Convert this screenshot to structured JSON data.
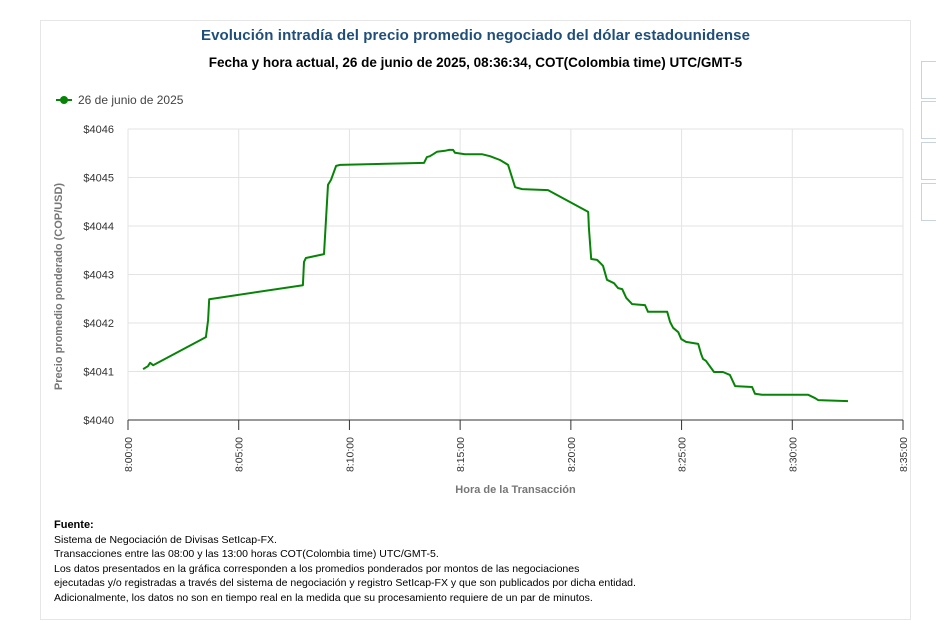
{
  "chart_data": {
    "type": "line",
    "title": "Evolución intradía del precio promedio negociado del dólar estadounidense",
    "subtitle": "Fecha y hora actual, 26 de junio de 2025, 08:36:34, COT(Colombia time) UTC/GMT-5",
    "xlabel": "Hora de la Transacción",
    "ylabel": "Precio promedio ponderado (COP/USD)",
    "xlim": [
      "8:00:00",
      "8:35:00"
    ],
    "ylim": [
      4040,
      4046
    ],
    "x_ticks": [
      "8:00:00",
      "8:05:00",
      "8:10:00",
      "8:15:00",
      "8:20:00",
      "8:25:00",
      "8:30:00",
      "8:35:00"
    ],
    "y_ticks": [
      "$4040",
      "$4041",
      "$4042",
      "$4043",
      "$4044",
      "$4045",
      "$4046"
    ],
    "grid": true,
    "legend_position": "top-left",
    "series": [
      {
        "name": "26 de junio de 2025",
        "color": "#078407",
        "x": [
          "8:00:41",
          "8:00:54",
          "8:01:00",
          "8:01:08",
          "8:03:31",
          "8:03:37",
          "8:03:40",
          "8:07:54",
          "8:07:57",
          "8:08:02",
          "8:08:51",
          "8:09:02",
          "8:09:10",
          "8:09:24",
          "8:09:35",
          "8:13:22",
          "8:13:30",
          "8:13:38",
          "8:13:47",
          "8:13:57",
          "8:14:19",
          "8:14:30",
          "8:14:41",
          "8:14:46",
          "8:15:13",
          "8:15:59",
          "8:16:21",
          "8:16:48",
          "8:17:10",
          "8:17:29",
          "8:17:48",
          "8:18:58",
          "8:20:47",
          "8:20:49",
          "8:20:55",
          "8:21:11",
          "8:21:22",
          "8:21:27",
          "8:21:38",
          "8:21:57",
          "8:22:08",
          "8:22:19",
          "8:22:30",
          "8:22:46",
          "8:23:21",
          "8:23:29",
          "8:24:21",
          "8:24:29",
          "8:24:37",
          "8:24:51",
          "8:24:59",
          "8:25:12",
          "8:25:45",
          "8:25:53",
          "8:25:58",
          "8:26:06",
          "8:26:28",
          "8:26:52",
          "8:27:11",
          "8:27:25",
          "8:28:11",
          "8:28:19",
          "8:28:38",
          "8:30:43",
          "8:31:02",
          "8:31:10",
          "8:32:31"
        ],
        "y": [
          4041.05,
          4041.11,
          4041.18,
          4041.13,
          4041.71,
          4042.06,
          4042.49,
          4042.78,
          4043.26,
          4043.34,
          4043.42,
          4044.85,
          4044.95,
          4045.24,
          4045.26,
          4045.3,
          4045.42,
          4045.44,
          4045.48,
          4045.53,
          4045.55,
          4045.57,
          4045.57,
          4045.51,
          4045.48,
          4045.48,
          4045.44,
          4045.36,
          4045.26,
          4044.8,
          4044.76,
          4044.74,
          4044.29,
          4043.96,
          4043.32,
          4043.3,
          4043.22,
          4043.18,
          4042.89,
          4042.82,
          4042.72,
          4042.7,
          4042.52,
          4042.39,
          4042.37,
          4042.23,
          4042.23,
          4042.02,
          4041.9,
          4041.81,
          4041.67,
          4041.61,
          4041.57,
          4041.36,
          4041.26,
          4041.22,
          4040.99,
          4040.99,
          4040.93,
          4040.7,
          4040.68,
          4040.54,
          4040.52,
          4040.52,
          4040.45,
          4040.41,
          4040.39
        ]
      }
    ]
  },
  "footer": {
    "heading": "Fuente:",
    "lines": [
      "Sistema de Negociación de Divisas SetIcap-FX.",
      "Transacciones entre las 08:00 y las 13:00 horas COT(Colombia time) UTC/GMT-5.",
      "Los datos presentados en la gráfica corresponden a los promedios ponderados por montos de las negociaciones",
      "ejecutadas y/o registradas a través del sistema de negociación y registro SetIcap-FX y que son publicados por dicha entidad.",
      "Adicionalmente, los datos no son en tiempo real en la medida que su procesamiento requiere de un par de minutos."
    ]
  }
}
